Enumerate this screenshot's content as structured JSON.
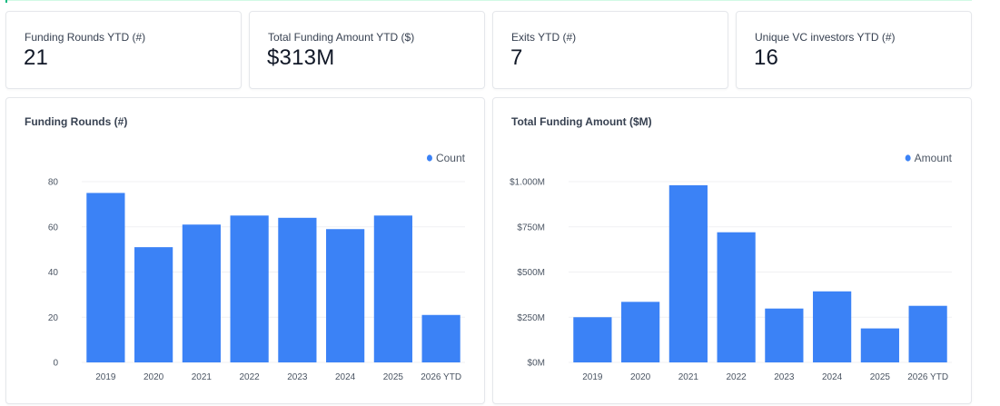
{
  "kpis": [
    {
      "label": "Funding Rounds YTD (#)",
      "value": "21"
    },
    {
      "label": "Total Funding Amount YTD ($)",
      "value": "$313M"
    },
    {
      "label": "Exits YTD (#)",
      "value": "7"
    },
    {
      "label": "Unique VC investors YTD (#)",
      "value": "16"
    }
  ],
  "colors": {
    "bar": "#3b82f6",
    "grid": "#f0f1f3",
    "accent": "#10b981"
  },
  "chart_data": [
    {
      "type": "bar",
      "title": "Funding Rounds (#)",
      "categories": [
        "2019",
        "2020",
        "2021",
        "2022",
        "2023",
        "2024",
        "2025",
        "2026 YTD"
      ],
      "series": [
        {
          "name": "Count",
          "values": [
            75,
            51,
            61,
            65,
            64,
            59,
            65,
            21
          ]
        }
      ],
      "ylim": [
        0,
        80
      ],
      "yticks": [
        0,
        20,
        40,
        60,
        80
      ],
      "ytick_labels": [
        "0",
        "20",
        "40",
        "60",
        "80"
      ],
      "legend": "top-right",
      "grid": true
    },
    {
      "type": "bar",
      "title": "Total Funding Amount ($M)",
      "categories": [
        "2019",
        "2020",
        "2021",
        "2022",
        "2023",
        "2024",
        "2025",
        "2026 YTD"
      ],
      "series": [
        {
          "name": "Amount",
          "values": [
            250,
            335,
            980,
            720,
            298,
            393,
            188,
            313
          ]
        }
      ],
      "ylim": [
        0,
        1000
      ],
      "yticks": [
        0,
        250,
        500,
        750,
        1000
      ],
      "ytick_labels": [
        "$0M",
        "$250M",
        "$500M",
        "$750M",
        "$1.000M"
      ],
      "legend": "top-right",
      "grid": true
    }
  ]
}
